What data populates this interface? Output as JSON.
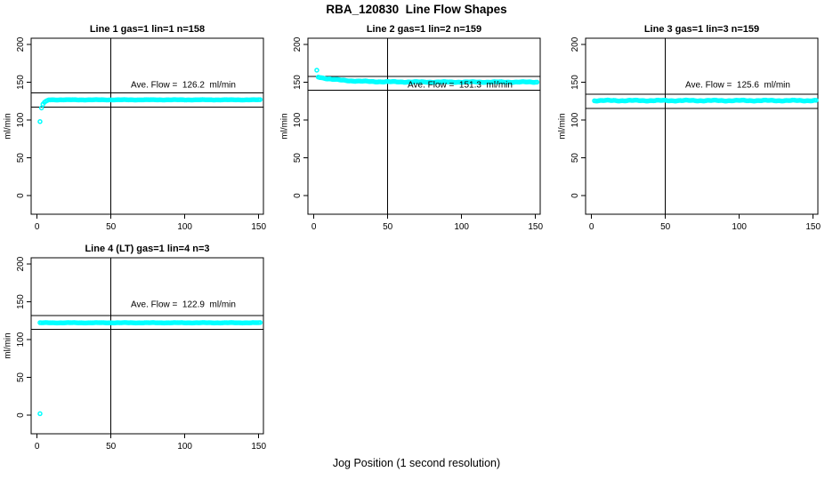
{
  "figure": {
    "title": "RBA_120830  Line Flow Shapes",
    "xlabel": "Jog Position (1 second resolution)",
    "background": "#ffffff",
    "point_color": "#00ffff",
    "axis_color": "#000000"
  },
  "chart_data": [
    {
      "type": "scatter",
      "title": "Line 1 gas=1 lin=1 n=158",
      "n": 158,
      "ave_flow": 126.2,
      "ave_label": "Ave. Flow =  126.2  ml/min",
      "ylabel": "ml/min",
      "x_ticks": [
        0,
        50,
        100,
        150
      ],
      "y_ticks": [
        0,
        50,
        100,
        150,
        200
      ],
      "x_range": [
        -4,
        153.2
      ],
      "y_range": [
        -24.6,
        208.3
      ],
      "vline_x": 50,
      "upper_line": 136,
      "lower_line": 117,
      "grid": false,
      "series": [
        {
          "kind": "points",
          "pts": [
            [
              2,
              98
            ],
            [
              3,
              116
            ],
            [
              4,
              121
            ],
            [
              5,
              123.5
            ],
            [
              6,
              125
            ],
            [
              7,
              126
            ]
          ]
        },
        {
          "kind": "flat",
          "x1": 8,
          "x2": 151,
          "y": 126.8,
          "jitter": 0.3
        }
      ]
    },
    {
      "type": "scatter",
      "title": "Line 2 gas=1 lin=2 n=159",
      "n": 159,
      "ave_flow": 151.3,
      "ave_label": "Ave. Flow =  151.3  ml/min",
      "ylabel": "ml/min",
      "x_ticks": [
        0,
        50,
        100,
        150
      ],
      "y_ticks": [
        0,
        50,
        100,
        150,
        200
      ],
      "x_range": [
        -4,
        153.2
      ],
      "y_range": [
        -24.6,
        208.3
      ],
      "vline_x": 50,
      "upper_line": 158,
      "lower_line": 139.5,
      "grid": false,
      "series": [
        {
          "kind": "points",
          "pts": [
            [
              2,
              166
            ]
          ]
        },
        {
          "kind": "decay",
          "x1": 3,
          "x2": 151,
          "y0": 157,
          "y_inf": 150.3,
          "tau": 16,
          "jitter": 0.6
        }
      ]
    },
    {
      "type": "scatter",
      "title": "Line 3 gas=1 lin=3 n=159",
      "n": 159,
      "ave_flow": 125.6,
      "ave_label": "Ave. Flow =  125.6  ml/min",
      "ylabel": "ml/min",
      "x_ticks": [
        0,
        50,
        100,
        150
      ],
      "y_ticks": [
        0,
        50,
        100,
        150,
        200
      ],
      "x_range": [
        -4,
        153.2
      ],
      "y_range": [
        -24.6,
        208.3
      ],
      "vline_x": 50,
      "upper_line": 134,
      "lower_line": 115.5,
      "grid": false,
      "series": [
        {
          "kind": "flat",
          "x1": 2,
          "x2": 152,
          "y": 125.8,
          "jitter": 0.7
        }
      ]
    },
    {
      "type": "scatter",
      "title": "Line 4 (LT) gas=1 lin=4 n=3",
      "n": 3,
      "ave_flow": 122.9,
      "ave_label": "Ave. Flow =  122.9  ml/min",
      "ylabel": "ml/min",
      "x_ticks": [
        0,
        50,
        100,
        150
      ],
      "y_ticks": [
        0,
        50,
        100,
        150,
        200
      ],
      "x_range": [
        -4,
        153.2
      ],
      "y_range": [
        -24.6,
        208.3
      ],
      "vline_x": 50,
      "upper_line": 132,
      "lower_line": 113.5,
      "grid": false,
      "series": [
        {
          "kind": "points",
          "pts": [
            [
              2,
              2
            ]
          ]
        },
        {
          "kind": "flat",
          "x1": 2,
          "x2": 151,
          "y": 122.3,
          "jitter": 0.3
        }
      ]
    }
  ]
}
